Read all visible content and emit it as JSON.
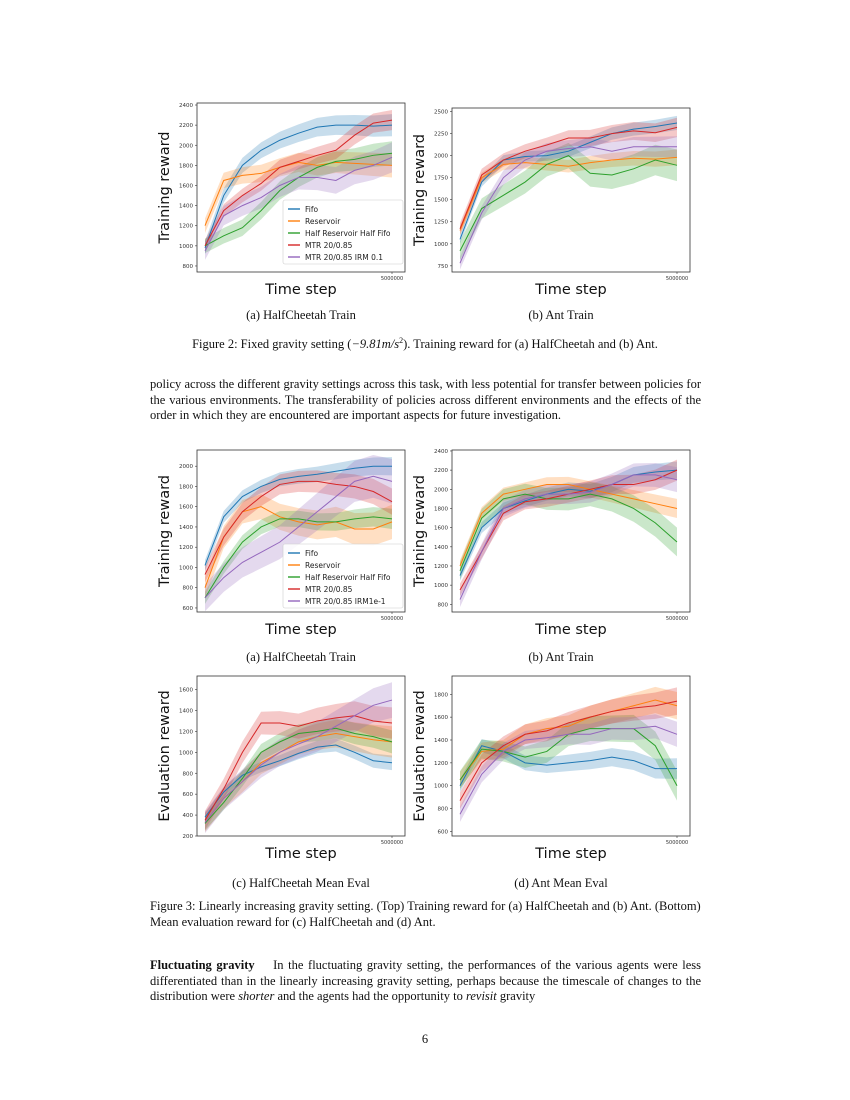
{
  "figure2": {
    "subcaptions": [
      "(a) HalfCheetah Train",
      "(b) Ant Train"
    ],
    "caption_prefix": "Figure 2: Fixed gravity setting (",
    "caption_math": "−9.81m/s",
    "caption_sup": "2",
    "caption_suffix": "). Training reward for (a) HalfCheetah and (b) Ant."
  },
  "paragraph1": "policy across the different gravity settings across this task, with less potential for transfer between policies for the various environments. The transferability of policies across different environments and the effects of the order in which they are encountered are important aspects for future investigation.",
  "figure3": {
    "subcaptions": [
      "(a) HalfCheetah Train",
      "(b) Ant Train",
      "(c) HalfCheetah Mean Eval",
      "(d) Ant Mean Eval"
    ],
    "caption": "Figure 3: Linearly increasing gravity setting. (Top) Training reward for (a) HalfCheetah and (b) Ant. (Bottom) Mean evaluation reward for (c) HalfCheetah and (d) Ant."
  },
  "paragraph2": {
    "heading": "Fluctuating gravity",
    "text1": "In the fluctuating gravity setting, the performances of the various agents were less differentiated than in the linearly increasing gravity setting, perhaps because the timescale of changes to the distribution were ",
    "em1": "shorter",
    "text2": " and the agents had the opportunity to ",
    "em2": "revisit",
    "text3": " gravity"
  },
  "page_number": "6",
  "colors": {
    "Fifo": "#1f77b4",
    "Reservoir": "#ff7f0e",
    "Half Reservoir Half Fifo": "#2ca02c",
    "MTR": "#d62728",
    "IRM": "#9467bd"
  },
  "chart_data": [
    {
      "id": "fig2a",
      "type": "line",
      "xlabel": "Time step",
      "ylabel": "Training reward",
      "x": [
        0,
        500000,
        1000000,
        1500000,
        2000000,
        2500000,
        3000000,
        3500000,
        4000000,
        4500000,
        5000000
      ],
      "xticks": [
        "5000000"
      ],
      "yticks": [
        800,
        1000,
        1200,
        1400,
        1600,
        1800,
        2000,
        2200,
        2400
      ],
      "ylim": [
        740,
        2420
      ],
      "legend": "lower-right",
      "shaded_bands": true,
      "series": [
        {
          "name": "Fifo",
          "color": "#1f77b4",
          "values": [
            980,
            1500,
            1800,
            1950,
            2050,
            2120,
            2180,
            2200,
            2200,
            2190,
            2200
          ],
          "std": 110
        },
        {
          "name": "Reservoir",
          "color": "#ff7f0e",
          "values": [
            1200,
            1650,
            1700,
            1720,
            1780,
            1830,
            1800,
            1830,
            1820,
            1810,
            1800
          ],
          "std": 120
        },
        {
          "name": "Half Reservoir Half Fifo",
          "color": "#2ca02c",
          "values": [
            1000,
            1100,
            1180,
            1350,
            1550,
            1680,
            1780,
            1840,
            1860,
            1900,
            1920
          ],
          "std": 120
        },
        {
          "name": "MTR 20/0.85",
          "color": "#d62728",
          "values": [
            1000,
            1350,
            1500,
            1620,
            1780,
            1840,
            1900,
            1950,
            2100,
            2220,
            2250
          ],
          "std": 100
        },
        {
          "name": "MTR 20/0.85 IRM 0.1",
          "color": "#9467bd",
          "values": [
            950,
            1300,
            1400,
            1480,
            1600,
            1680,
            1680,
            1650,
            1750,
            1800,
            1880
          ],
          "std": 150
        }
      ]
    },
    {
      "id": "fig2b",
      "type": "line",
      "xlabel": "Time step",
      "ylabel": "Training reward",
      "x": [
        0,
        500000,
        1000000,
        1500000,
        2000000,
        2500000,
        3000000,
        3500000,
        4000000,
        4500000,
        5000000
      ],
      "xticks": [
        "5000000"
      ],
      "yticks": [
        750,
        1000,
        1250,
        1500,
        1750,
        2000,
        2250,
        2500
      ],
      "ylim": [
        680,
        2540
      ],
      "shaded_bands": true,
      "series": [
        {
          "name": "Fifo",
          "color": "#1f77b4",
          "values": [
            1050,
            1700,
            1950,
            1990,
            2000,
            2050,
            2150,
            2250,
            2300,
            2330,
            2370
          ],
          "std": 80
        },
        {
          "name": "Reservoir",
          "color": "#ff7f0e",
          "values": [
            1150,
            1750,
            1900,
            1920,
            1900,
            1880,
            1920,
            1950,
            1970,
            1960,
            1980
          ],
          "std": 90
        },
        {
          "name": "Half Reservoir Half Fifo",
          "color": "#2ca02c",
          "values": [
            920,
            1400,
            1550,
            1700,
            1900,
            2000,
            1800,
            1780,
            1850,
            1950,
            1890
          ],
          "std": 180
        },
        {
          "name": "MTR 20/0.85",
          "color": "#d62728",
          "values": [
            1170,
            1780,
            1950,
            2050,
            2120,
            2200,
            2200,
            2250,
            2280,
            2260,
            2320
          ],
          "std": 110
        },
        {
          "name": "MTR 20/0.85 IRM 0.1",
          "color": "#9467bd",
          "values": [
            780,
            1350,
            1750,
            1950,
            2050,
            2080,
            2100,
            2050,
            2100,
            2100,
            2100
          ],
          "std": 120
        }
      ]
    },
    {
      "id": "fig3a",
      "type": "line",
      "xlabel": "Time step",
      "ylabel": "Training reward",
      "x": [
        0,
        500000,
        1000000,
        1500000,
        2000000,
        2500000,
        3000000,
        3500000,
        4000000,
        4500000,
        5000000
      ],
      "xticks": [
        "5000000"
      ],
      "yticks": [
        600,
        800,
        1000,
        1200,
        1400,
        1600,
        1800,
        2000
      ],
      "ylim": [
        560,
        2160
      ],
      "legend": "lower-right",
      "shaded_bands": true,
      "series": [
        {
          "name": "Fifo",
          "color": "#1f77b4",
          "values": [
            1020,
            1500,
            1700,
            1800,
            1870,
            1900,
            1920,
            1950,
            1980,
            2000,
            2000
          ],
          "std": 90
        },
        {
          "name": "Reservoir",
          "color": "#ff7f0e",
          "values": [
            800,
            1300,
            1550,
            1600,
            1500,
            1450,
            1420,
            1450,
            1380,
            1380,
            1450
          ],
          "std": 170
        },
        {
          "name": "Half Reservoir Half Fifo",
          "color": "#2ca02c",
          "values": [
            700,
            1000,
            1250,
            1400,
            1480,
            1480,
            1450,
            1450,
            1480,
            1500,
            1480
          ],
          "std": 100
        },
        {
          "name": "MTR 20/0.85",
          "color": "#d62728",
          "values": [
            930,
            1300,
            1550,
            1700,
            1820,
            1850,
            1850,
            1820,
            1800,
            1750,
            1650
          ],
          "std": 130
        },
        {
          "name": "MTR 20/0.85 IRM1e-1",
          "color": "#9467bd",
          "values": [
            700,
            900,
            1050,
            1150,
            1250,
            1400,
            1550,
            1700,
            1850,
            1900,
            1850
          ],
          "std": 220
        }
      ]
    },
    {
      "id": "fig3b",
      "type": "line",
      "xlabel": "Time step",
      "ylabel": "Training reward",
      "x": [
        0,
        500000,
        1000000,
        1500000,
        2000000,
        2500000,
        3000000,
        3500000,
        4000000,
        4500000,
        5000000
      ],
      "xticks": [
        "5000000"
      ],
      "yticks": [
        800,
        1000,
        1200,
        1400,
        1600,
        1800,
        2000,
        2200,
        2400
      ],
      "ylim": [
        720,
        2410
      ],
      "shaded_bands": true,
      "series": [
        {
          "name": "Fifo",
          "color": "#1f77b4",
          "values": [
            1100,
            1600,
            1800,
            1880,
            1950,
            2000,
            1980,
            2050,
            2150,
            2180,
            2200
          ],
          "std": 90
        },
        {
          "name": "Reservoir",
          "color": "#ff7f0e",
          "values": [
            1200,
            1750,
            1950,
            2000,
            2050,
            2050,
            2000,
            1950,
            1900,
            1850,
            1800
          ],
          "std": 100
        },
        {
          "name": "Half Reservoir Half Fifo",
          "color": "#2ca02c",
          "values": [
            1150,
            1700,
            1900,
            1950,
            1900,
            1900,
            1950,
            1900,
            1800,
            1650,
            1450
          ],
          "std": 150
        },
        {
          "name": "MTR 20/0.85",
          "color": "#d62728",
          "values": [
            950,
            1350,
            1750,
            1870,
            1900,
            1950,
            2000,
            2050,
            2050,
            2100,
            2200
          ],
          "std": 110
        },
        {
          "name": "MTR 20/0.85 IRM1e-1",
          "color": "#9467bd",
          "values": [
            850,
            1350,
            1800,
            1900,
            1950,
            1950,
            1970,
            2050,
            2150,
            2150,
            2100
          ],
          "std": 130
        }
      ]
    },
    {
      "id": "fig3c",
      "type": "line",
      "xlabel": "Time step",
      "ylabel": "Evaluation reward",
      "x": [
        0,
        500000,
        1000000,
        1500000,
        2000000,
        2500000,
        3000000,
        3500000,
        4000000,
        4500000,
        5000000
      ],
      "xticks": [
        "5000000"
      ],
      "yticks": [
        200,
        400,
        600,
        800,
        1000,
        1200,
        1400,
        1600
      ],
      "ylim": [
        200,
        1730
      ],
      "shaded_bands": true,
      "series": [
        {
          "name": "Fifo",
          "color": "#1f77b4",
          "values": [
            380,
            620,
            780,
            860,
            920,
            990,
            1050,
            1070,
            1000,
            920,
            900
          ],
          "std": 70
        },
        {
          "name": "Reservoir",
          "color": "#ff7f0e",
          "values": [
            330,
            560,
            720,
            900,
            1000,
            1100,
            1150,
            1180,
            1150,
            1120,
            1100
          ],
          "std": 150
        },
        {
          "name": "Half Reservoir Half Fifo",
          "color": "#2ca02c",
          "values": [
            320,
            520,
            750,
            1000,
            1100,
            1180,
            1200,
            1230,
            1180,
            1150,
            1100
          ],
          "std": 110
        },
        {
          "name": "MTR 20/0.85",
          "color": "#d62728",
          "values": [
            350,
            650,
            1000,
            1280,
            1280,
            1250,
            1300,
            1330,
            1350,
            1300,
            1280
          ],
          "std": 150
        },
        {
          "name": "MTR 20/0.85 IRM1e-1",
          "color": "#9467bd",
          "values": [
            330,
            560,
            720,
            880,
            1000,
            1080,
            1150,
            1250,
            1350,
            1450,
            1500
          ],
          "std": 170
        }
      ]
    },
    {
      "id": "fig3d",
      "type": "line",
      "xlabel": "Time step",
      "ylabel": "Evaluation reward",
      "x": [
        0,
        500000,
        1000000,
        1500000,
        2000000,
        2500000,
        3000000,
        3500000,
        4000000,
        4500000,
        5000000
      ],
      "xticks": [
        "5000000"
      ],
      "yticks": [
        600,
        800,
        1000,
        1200,
        1400,
        1600,
        1800
      ],
      "ylim": [
        560,
        1960
      ],
      "shaded_bands": true,
      "series": [
        {
          "name": "Fifo",
          "color": "#1f77b4",
          "values": [
            1000,
            1350,
            1300,
            1200,
            1180,
            1200,
            1220,
            1250,
            1220,
            1150,
            1150
          ],
          "std": 90
        },
        {
          "name": "Reservoir",
          "color": "#ff7f0e",
          "values": [
            1050,
            1300,
            1320,
            1450,
            1500,
            1520,
            1600,
            1650,
            1700,
            1750,
            1700
          ],
          "std": 120
        },
        {
          "name": "Half Reservoir Half Fifo",
          "color": "#2ca02c",
          "values": [
            1050,
            1320,
            1300,
            1250,
            1300,
            1450,
            1500,
            1500,
            1500,
            1350,
            1000
          ],
          "std": 130
        },
        {
          "name": "MTR 20/0.85",
          "color": "#d62728",
          "values": [
            870,
            1200,
            1350,
            1450,
            1480,
            1550,
            1600,
            1650,
            1680,
            1700,
            1740
          ],
          "std": 120
        },
        {
          "name": "MTR 20/0.85 IRM1e-1",
          "color": "#9467bd",
          "values": [
            750,
            1100,
            1300,
            1400,
            1420,
            1450,
            1450,
            1500,
            1500,
            1520,
            1450
          ],
          "std": 110
        }
      ]
    }
  ]
}
